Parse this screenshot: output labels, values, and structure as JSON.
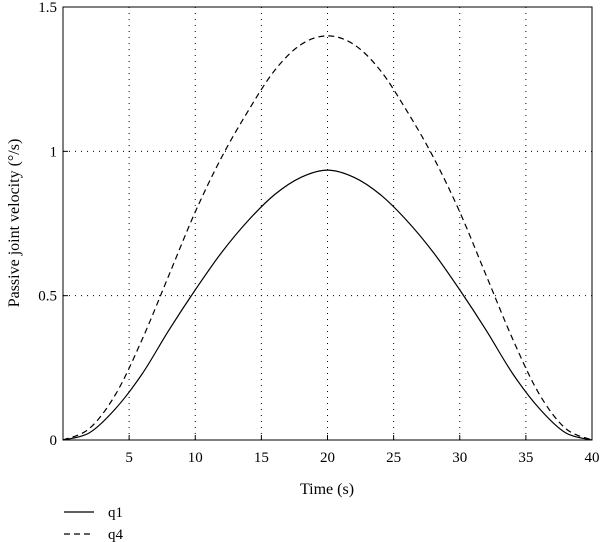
{
  "chart_data": {
    "type": "line",
    "title": "",
    "xlabel": "Time (s)",
    "ylabel": "Passive joint velocity (°/s)",
    "xlim": [
      0,
      40
    ],
    "ylim": [
      0,
      1.5
    ],
    "xticks": [
      5,
      10,
      15,
      20,
      25,
      30,
      35,
      40
    ],
    "yticks": [
      0,
      0.5,
      1,
      1.5
    ],
    "xtick_labels": [
      "5",
      "10",
      "15",
      "20",
      "25",
      "30",
      "35",
      "40"
    ],
    "ytick_labels": [
      "0",
      "0.5",
      "1",
      "1.5"
    ],
    "grid": true,
    "legend_position": "bottom-left, below plot",
    "series": [
      {
        "name": "q1",
        "style": "solid",
        "color": "#000000",
        "x": [
          0,
          2,
          4,
          6,
          8,
          10,
          12,
          14,
          16,
          18,
          20,
          22,
          24,
          26,
          28,
          30,
          32,
          34,
          36,
          38,
          40
        ],
        "values": [
          0,
          0.025,
          0.11,
          0.23,
          0.38,
          0.52,
          0.65,
          0.76,
          0.85,
          0.91,
          0.935,
          0.91,
          0.85,
          0.76,
          0.65,
          0.52,
          0.38,
          0.23,
          0.11,
          0.025,
          0
        ]
      },
      {
        "name": "q4",
        "style": "dashed",
        "color": "#000000",
        "x": [
          0,
          2,
          4,
          6,
          8,
          10,
          12,
          14,
          16,
          18,
          20,
          22,
          24,
          26,
          28,
          30,
          32,
          34,
          36,
          38,
          40
        ],
        "values": [
          0,
          0.04,
          0.16,
          0.35,
          0.57,
          0.79,
          0.98,
          1.14,
          1.28,
          1.37,
          1.4,
          1.37,
          1.28,
          1.14,
          0.98,
          0.79,
          0.57,
          0.35,
          0.16,
          0.04,
          0
        ]
      }
    ]
  }
}
